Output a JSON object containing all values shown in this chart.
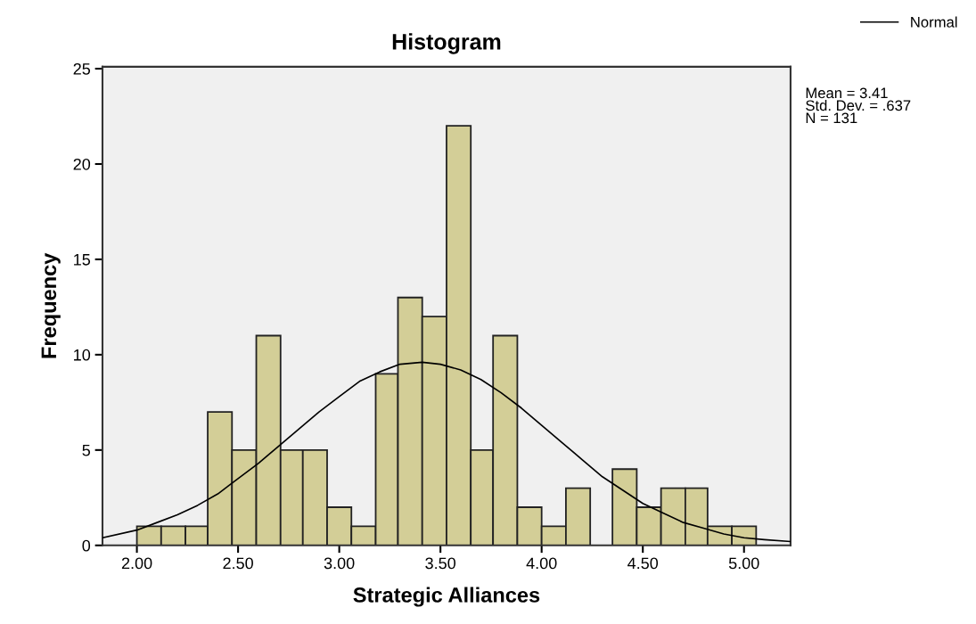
{
  "chart_data": {
    "type": "histogram",
    "title": "Histogram",
    "xlabel": "Strategic Alliances",
    "ylabel": "Frequency",
    "bins": [
      2.0,
      2.12,
      2.24,
      2.35,
      2.47,
      2.59,
      2.71,
      2.82,
      2.94,
      3.06,
      3.18,
      3.29,
      3.41,
      3.53,
      3.65,
      3.76,
      3.88,
      4.0,
      4.12,
      4.24,
      4.35,
      4.47,
      4.59,
      4.71,
      4.82,
      4.94,
      5.06
    ],
    "series": [
      {
        "color": "#d3ce97",
        "values": [
          1,
          1,
          1,
          7,
          5,
          11,
          5,
          5,
          2,
          1,
          9,
          13,
          12,
          22,
          5,
          11,
          2,
          1,
          3,
          0,
          4,
          2,
          3,
          3,
          1,
          1
        ]
      },
      {
        "type": "line",
        "name": "Normal",
        "color": "#000000",
        "x": [
          1.83,
          2.0,
          2.1,
          2.2,
          2.3,
          2.4,
          2.5,
          2.6,
          2.7,
          2.8,
          2.9,
          3.0,
          3.1,
          3.2,
          3.3,
          3.41,
          3.5,
          3.6,
          3.7,
          3.8,
          3.9,
          4.0,
          4.1,
          4.2,
          4.3,
          4.4,
          4.5,
          4.6,
          4.7,
          4.8,
          4.9,
          5.0,
          5.1,
          5.23
        ],
        "values": [
          0.4,
          0.8,
          1.2,
          1.6,
          2.1,
          2.7,
          3.5,
          4.3,
          5.2,
          6.1,
          7.0,
          7.8,
          8.6,
          9.1,
          9.5,
          9.6,
          9.5,
          9.2,
          8.7,
          8.0,
          7.2,
          6.3,
          5.4,
          4.5,
          3.6,
          2.9,
          2.2,
          1.7,
          1.2,
          0.9,
          0.6,
          0.4,
          0.3,
          0.2
        ]
      }
    ],
    "xlim": [
      1.83,
      5.23
    ],
    "ylim": [
      0,
      25.1
    ],
    "xticks": [
      {
        "value": 2.0,
        "label": "2.00"
      },
      {
        "value": 2.5,
        "label": "2.50"
      },
      {
        "value": 3.0,
        "label": "3.00"
      },
      {
        "value": 3.5,
        "label": "3.50"
      },
      {
        "value": 4.0,
        "label": "4.00"
      },
      {
        "value": 4.5,
        "label": "4.50"
      },
      {
        "value": 5.0,
        "label": "5.00"
      }
    ],
    "yticks": [
      0,
      5,
      10,
      15,
      20,
      25
    ],
    "annotations": [
      "Mean = 3.41",
      "Std. Dev. = .637",
      "N = 131"
    ],
    "legend": "top right",
    "grid": false
  }
}
